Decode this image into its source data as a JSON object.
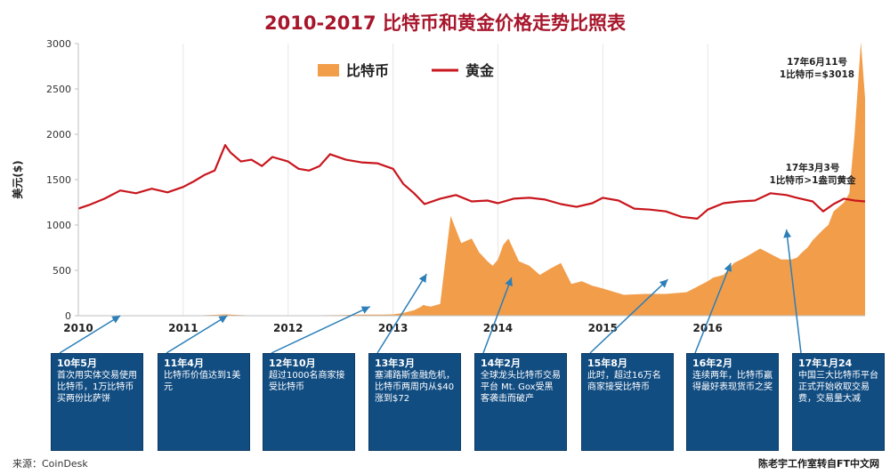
{
  "chart_data": {
    "type": "line",
    "title": "2010-2017 比特币和黄金价格走势比照表",
    "ylabel": "美元($)",
    "ylim": [
      0,
      3000
    ],
    "yticks": [
      0,
      500,
      1000,
      1500,
      2000,
      2500,
      3000
    ],
    "xlim": [
      2010.0,
      2017.5
    ],
    "xticks": [
      "2010",
      "2011",
      "2012",
      "2013",
      "2014",
      "2015",
      "2016"
    ],
    "grid": "vertical",
    "legend_position": "top-center",
    "series": [
      {
        "name": "比特币",
        "style": "area",
        "color": "#f29d4a",
        "x": [
          2010.0,
          2010.5,
          2010.9,
          2011.1,
          2011.4,
          2011.5,
          2011.6,
          2011.8,
          2012.0,
          2012.3,
          2012.5,
          2012.7,
          2012.9,
          2013.0,
          2013.1,
          2013.2,
          2013.27,
          2013.29,
          2013.31,
          2013.36,
          2013.45,
          2013.55,
          2013.65,
          2013.75,
          2013.82,
          2013.9,
          2013.95,
          2014.0,
          2014.05,
          2014.1,
          2014.2,
          2014.3,
          2014.4,
          2014.5,
          2014.6,
          2014.7,
          2014.8,
          2014.9,
          2015.0,
          2015.2,
          2015.4,
          2015.6,
          2015.8,
          2016.0,
          2016.05,
          2016.15,
          2016.25,
          2016.35,
          2016.5,
          2016.6,
          2016.7,
          2016.8,
          2016.85,
          2016.9,
          2016.95,
          2017.0,
          2017.1,
          2017.15,
          2017.2,
          2017.25,
          2017.3,
          2017.35,
          2017.4,
          2017.43,
          2017.46,
          2017.5
        ],
        "values": [
          0,
          0,
          0,
          1,
          15,
          10,
          5,
          3,
          5,
          5,
          7,
          12,
          13,
          15,
          30,
          60,
          100,
          120,
          110,
          100,
          130,
          1100,
          800,
          850,
          700,
          600,
          550,
          620,
          780,
          850,
          600,
          550,
          450,
          520,
          580,
          350,
          380,
          330,
          300,
          230,
          240,
          240,
          260,
          380,
          420,
          450,
          580,
          640,
          740,
          680,
          620,
          620,
          640,
          700,
          750,
          830,
          950,
          1000,
          1150,
          1200,
          1250,
          1350,
          2000,
          2500,
          3018,
          2400
        ]
      },
      {
        "name": "黄金",
        "style": "line",
        "color": "#c8161d",
        "x": [
          2010.0,
          2010.1,
          2010.25,
          2010.4,
          2010.55,
          2010.7,
          2010.85,
          2011.0,
          2011.1,
          2011.2,
          2011.3,
          2011.4,
          2011.45,
          2011.55,
          2011.65,
          2011.75,
          2011.85,
          2012.0,
          2012.1,
          2012.2,
          2012.3,
          2012.4,
          2012.55,
          2012.7,
          2012.85,
          2013.0,
          2013.1,
          2013.2,
          2013.3,
          2013.45,
          2013.6,
          2013.75,
          2013.9,
          2014.0,
          2014.15,
          2014.3,
          2014.45,
          2014.6,
          2014.75,
          2014.9,
          2015.0,
          2015.15,
          2015.3,
          2015.45,
          2015.6,
          2015.75,
          2015.9,
          2016.0,
          2016.15,
          2016.3,
          2016.45,
          2016.6,
          2016.75,
          2016.85,
          2017.0,
          2017.1,
          2017.2,
          2017.3,
          2017.4,
          2017.5
        ],
        "values": [
          1180,
          1220,
          1290,
          1380,
          1350,
          1400,
          1360,
          1420,
          1480,
          1550,
          1600,
          1880,
          1800,
          1700,
          1720,
          1650,
          1750,
          1700,
          1620,
          1600,
          1650,
          1780,
          1720,
          1690,
          1680,
          1620,
          1450,
          1350,
          1230,
          1290,
          1330,
          1260,
          1270,
          1240,
          1290,
          1300,
          1280,
          1230,
          1200,
          1240,
          1300,
          1270,
          1180,
          1170,
          1150,
          1090,
          1070,
          1170,
          1240,
          1260,
          1270,
          1350,
          1330,
          1300,
          1260,
          1150,
          1230,
          1290,
          1270,
          1260
        ]
      }
    ],
    "annotations": [
      {
        "x": 2017.45,
        "y": 3018,
        "lines": [
          "17年6月11号",
          "1比特币=$3018"
        ]
      },
      {
        "x": 2017.1,
        "y": 1250,
        "lines": [
          "17年3月3号",
          "1比特币>1盎司黄金"
        ]
      }
    ],
    "events": [
      {
        "date": "10年5月",
        "text": "首次用实体交易使用比特币，1万比特币买两份比萨饼",
        "x": 2010.4,
        "y": 0
      },
      {
        "date": "11年4月",
        "text": "比特币价值达到1美元",
        "x": 2011.42,
        "y": 0
      },
      {
        "date": "12年10月",
        "text": "超过1000名商家接受比特币",
        "x": 2012.78,
        "y": 100
      },
      {
        "date": "13年3月",
        "text": "塞浦路斯金融危机，比特币两周内从$40涨到$72",
        "x": 2013.32,
        "y": 460
      },
      {
        "date": "14年2月",
        "text": "全球龙头比特币交易平台 Mt. Gox受黑客袭击而破产",
        "x": 2014.13,
        "y": 420
      },
      {
        "date": "15年8月",
        "text": "此时，超过16万名商家接受比特币",
        "x": 2015.62,
        "y": 400
      },
      {
        "date": "16年2月",
        "text": "连续两年，比特币赢得最好表现货币之奖",
        "x": 2016.22,
        "y": 580
      },
      {
        "date": "17年1月24",
        "text": "中国三大比特币平台正式开始收取交易费，交易量大减",
        "x": 2016.75,
        "y": 950
      }
    ]
  },
  "footer": {
    "source": "来源：CoinDesk",
    "credit": "陈老宇工作室转自FT中文网"
  }
}
